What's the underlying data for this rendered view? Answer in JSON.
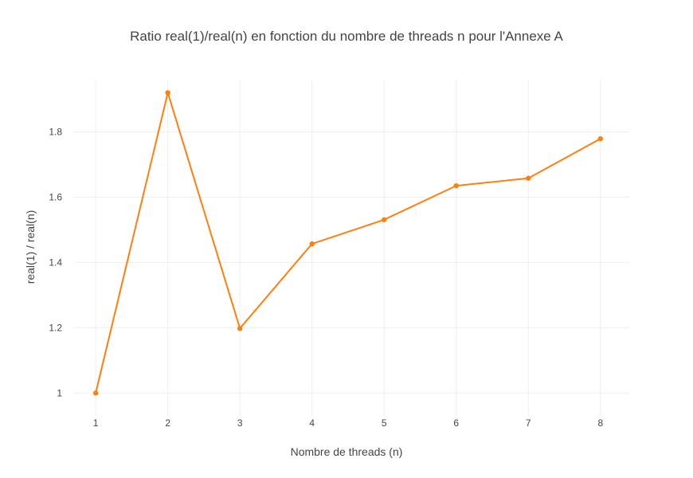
{
  "chart_data": {
    "type": "line",
    "title": "Ratio real(1)/real(n) en fonction du nombre de threads n pour l'Annexe A",
    "xlabel": "Nombre de threads (n)",
    "ylabel": "real(1) / real(n)",
    "x": [
      1,
      2,
      3,
      4,
      5,
      6,
      7,
      8
    ],
    "series": [
      {
        "values": [
          1.0,
          1.92,
          1.198,
          1.457,
          1.531,
          1.635,
          1.658,
          1.779
        ],
        "color": "#ff7f0e"
      }
    ],
    "xlim": [
      0.7,
      8.4
    ],
    "ylim": [
      0.93,
      1.96
    ],
    "x_ticks": [
      1,
      2,
      3,
      4,
      5,
      6,
      7,
      8
    ],
    "x_tick_labels": [
      "1",
      "2",
      "3",
      "4",
      "5",
      "6",
      "7",
      "8"
    ],
    "y_ticks": [
      1,
      1.2,
      1.4,
      1.6,
      1.8
    ],
    "y_tick_labels": [
      "1",
      "1.2",
      "1.4",
      "1.6",
      "1.8"
    ],
    "grid": true,
    "legend": "none",
    "markers": true
  }
}
